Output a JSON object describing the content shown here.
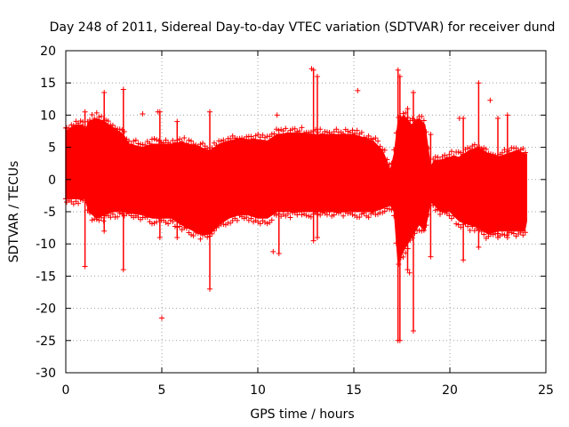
{
  "chart_data": {
    "type": "scatter",
    "title": "Day 248 of 2011, Sidereal Day-to-day VTEC variation (SDTVAR) for receiver dund",
    "xlabel": "GPS time / hours",
    "ylabel": "SDTVAR / TECUs",
    "xlim": [
      0,
      25
    ],
    "ylim": [
      -30,
      20
    ],
    "x_ticks": [
      0,
      5,
      10,
      15,
      20,
      25
    ],
    "x_tick_labels": [
      "0",
      "5",
      "10",
      "15",
      "20",
      "25"
    ],
    "y_ticks": [
      -30,
      -25,
      -20,
      -15,
      -10,
      -5,
      0,
      5,
      10,
      15,
      20
    ],
    "y_tick_labels": [
      "-30",
      "-25",
      "-20",
      "-15",
      "-10",
      "-5",
      "0",
      "5",
      "10",
      "15",
      "20"
    ],
    "grid": true,
    "marker": "plus",
    "color": "#ff0000",
    "envelope": {
      "x": [
        0,
        0.5,
        0.9,
        1.0,
        1.2,
        1.6,
        2.0,
        2.5,
        3.0,
        3.3,
        4.0,
        4.5,
        5.0,
        5.5,
        6.0,
        7.0,
        7.5,
        8.0,
        8.5,
        9.0,
        9.5,
        10.0,
        10.5,
        11.0,
        12.0,
        13.0,
        14.0,
        15.0,
        16.0,
        16.5,
        16.9,
        17.1,
        17.3,
        17.6,
        18.0,
        18.4,
        18.7,
        19.0,
        19.2,
        19.5,
        20.0,
        20.5,
        21.0,
        21.5,
        22.0,
        22.5,
        23.0,
        23.5,
        23.9,
        24.0
      ],
      "upper": [
        7.5,
        8.5,
        8.5,
        7.5,
        9.0,
        9.5,
        9.0,
        8.0,
        7.0,
        5.5,
        5.0,
        5.5,
        5.5,
        5.5,
        5.8,
        5.0,
        4.5,
        5.5,
        6.0,
        6.3,
        6.2,
        6.2,
        6.0,
        7.0,
        7.3,
        7.0,
        7.0,
        7.0,
        6.0,
        4.5,
        1.5,
        4.0,
        9.0,
        10.0,
        8.5,
        9.5,
        8.5,
        2.0,
        3.0,
        3.0,
        3.5,
        3.5,
        4.5,
        5.0,
        4.0,
        3.5,
        4.0,
        4.5,
        4.0,
        4.0
      ],
      "lower": [
        -3.0,
        -3.0,
        -3.0,
        -3.0,
        -5.0,
        -6.0,
        -5.5,
        -5.0,
        -5.0,
        -5.2,
        -5.5,
        -6.0,
        -6.0,
        -6.0,
        -7.0,
        -8.5,
        -8.5,
        -7.0,
        -6.0,
        -5.5,
        -5.5,
        -6.0,
        -6.0,
        -5.0,
        -5.0,
        -5.0,
        -5.0,
        -5.0,
        -5.0,
        -4.5,
        -4.0,
        -5.0,
        -13.0,
        -11.0,
        -9.0,
        -7.0,
        -8.0,
        -3.5,
        -4.0,
        -5.0,
        -5.0,
        -6.5,
        -7.0,
        -7.5,
        -8.5,
        -8.0,
        -8.0,
        -8.0,
        -8.0,
        -6.5
      ]
    },
    "vertical_streaks": [
      {
        "x": 0.0,
        "y_min": -3.0,
        "y_max": 8.0
      },
      {
        "x": 1.0,
        "y_min": -13.5,
        "y_max": 10.5
      },
      {
        "x": 2.0,
        "y_min": -8.0,
        "y_max": 13.5
      },
      {
        "x": 3.0,
        "y_min": -14.0,
        "y_max": 14.0
      },
      {
        "x": 4.9,
        "y_min": -9.0,
        "y_max": 10.5
      },
      {
        "x": 5.8,
        "y_min": -9.0,
        "y_max": 9.0
      },
      {
        "x": 7.5,
        "y_min": -17.0,
        "y_max": 10.5
      },
      {
        "x": 11.1,
        "y_min": -11.5,
        "y_max": 7.0
      },
      {
        "x": 12.9,
        "y_min": -9.5,
        "y_max": 17.0
      },
      {
        "x": 13.1,
        "y_min": -9.0,
        "y_max": 16.0
      },
      {
        "x": 17.3,
        "y_min": -25.0,
        "y_max": 17.0
      },
      {
        "x": 17.4,
        "y_min": -25.0,
        "y_max": 16.0
      },
      {
        "x": 17.8,
        "y_min": -14.0,
        "y_max": 11.0
      },
      {
        "x": 18.1,
        "y_min": -23.5,
        "y_max": 13.5
      },
      {
        "x": 19.0,
        "y_min": -12.0,
        "y_max": 7.0
      },
      {
        "x": 20.7,
        "y_min": -12.5,
        "y_max": 9.5
      },
      {
        "x": 21.5,
        "y_min": -10.5,
        "y_max": 15.0
      },
      {
        "x": 22.5,
        "y_min": -9.0,
        "y_max": 9.5
      },
      {
        "x": 23.0,
        "y_min": -9.0,
        "y_max": 10.0
      }
    ],
    "outliers": [
      {
        "x": 4.0,
        "y": 10.2
      },
      {
        "x": 4.8,
        "y": 10.5
      },
      {
        "x": 5.0,
        "y": -21.5
      },
      {
        "x": 10.8,
        "y": -11.2
      },
      {
        "x": 11.0,
        "y": 10.0
      },
      {
        "x": 12.8,
        "y": 17.2
      },
      {
        "x": 15.2,
        "y": 13.8
      },
      {
        "x": 17.9,
        "y": -14.5
      },
      {
        "x": 20.5,
        "y": 9.5
      },
      {
        "x": 22.1,
        "y": 12.3
      }
    ]
  }
}
